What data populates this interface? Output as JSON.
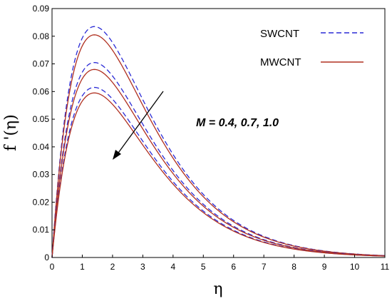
{
  "chart_data": {
    "type": "line",
    "xlabel": "η",
    "ylabel": "f '(η)",
    "xlim": [
      0,
      11
    ],
    "ylim": [
      0,
      0.09
    ],
    "x_ticks": [
      0,
      1,
      2,
      3,
      4,
      5,
      6,
      7,
      8,
      9,
      10,
      11
    ],
    "y_ticks": [
      0,
      0.01,
      0.02,
      0.03,
      0.04,
      0.05,
      0.06,
      0.07,
      0.08,
      0.09
    ],
    "grid": false,
    "legend_position": "top-right",
    "legend": [
      {
        "label": "SWCNT",
        "color": "#2a2ad6",
        "style": "dashed"
      },
      {
        "label": "MWCNT",
        "color": "#b03020",
        "style": "solid"
      }
    ],
    "annotation": {
      "text": "M = 0.4, 0.7, 1.0",
      "arrow": "pointing toward decreasing curves"
    },
    "series": [
      {
        "name": "SWCNT",
        "M": 0.4,
        "color": "#2a2ad6",
        "style": "dashed",
        "peak_x": 1.4,
        "peak_y": 0.0835
      },
      {
        "name": "MWCNT",
        "M": 0.4,
        "color": "#b03020",
        "style": "solid",
        "peak_x": 1.4,
        "peak_y": 0.0805
      },
      {
        "name": "SWCNT",
        "M": 0.7,
        "color": "#2a2ad6",
        "style": "dashed",
        "peak_x": 1.4,
        "peak_y": 0.0705
      },
      {
        "name": "MWCNT",
        "M": 0.7,
        "color": "#b03020",
        "style": "solid",
        "peak_x": 1.4,
        "peak_y": 0.068
      },
      {
        "name": "SWCNT",
        "M": 1.0,
        "color": "#2a2ad6",
        "style": "dashed",
        "peak_x": 1.4,
        "peak_y": 0.0615
      },
      {
        "name": "MWCNT",
        "M": 1.0,
        "color": "#b03020",
        "style": "solid",
        "peak_x": 1.4,
        "peak_y": 0.0595
      }
    ]
  }
}
